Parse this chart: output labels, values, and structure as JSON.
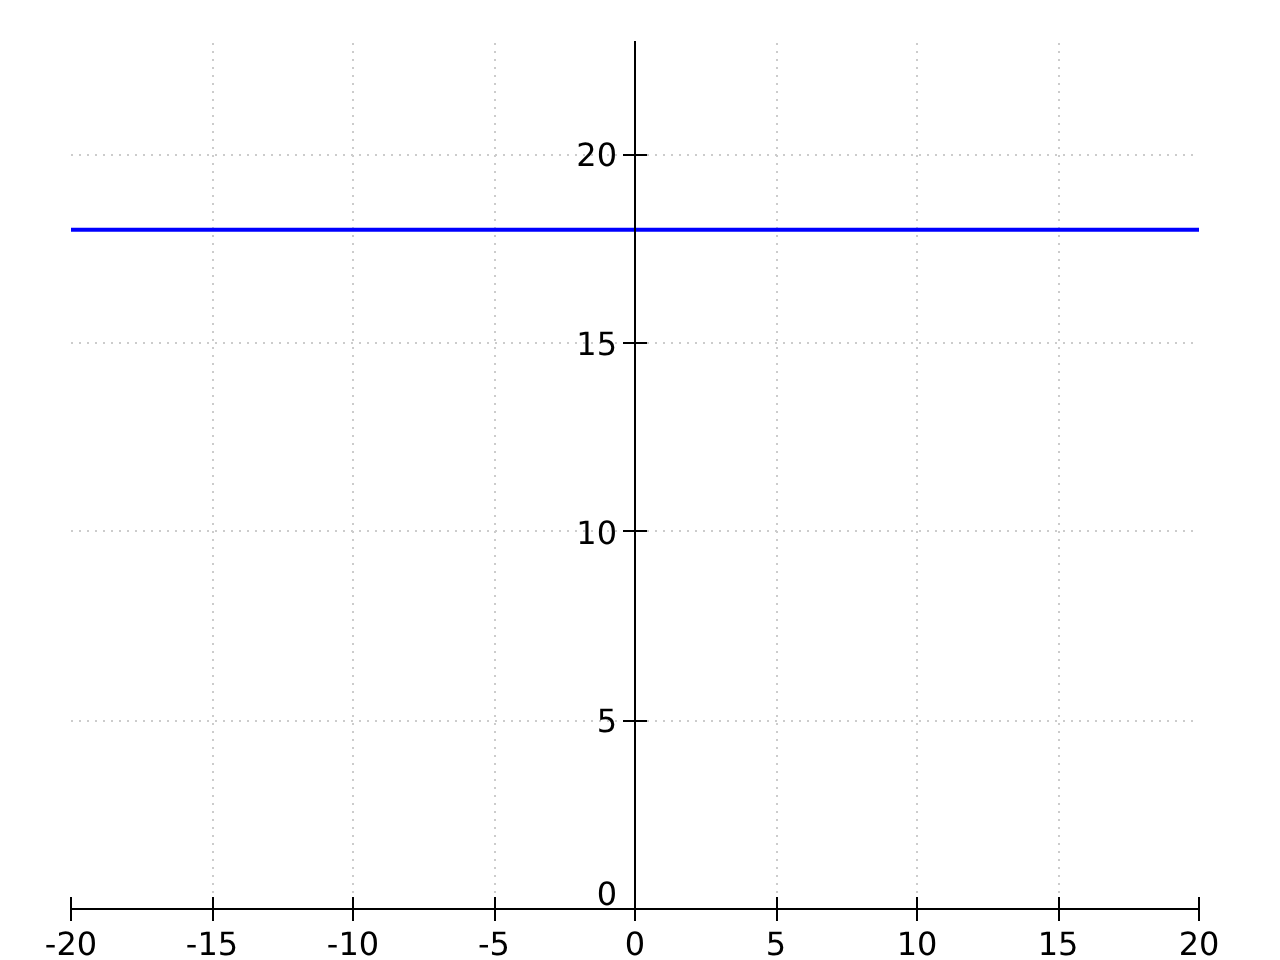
{
  "chart_data": {
    "type": "line",
    "x": [
      -20,
      20
    ],
    "series": [
      {
        "color": "#0000ff",
        "values": [
          18,
          18
        ]
      }
    ],
    "xlim": [
      -20,
      20
    ],
    "ylim": [
      0,
      23
    ],
    "xticks": [
      -20,
      -15,
      -10,
      -5,
      0,
      5,
      10,
      15,
      20
    ],
    "yticks": [
      0,
      5,
      10,
      15,
      20
    ],
    "grid": true
  }
}
